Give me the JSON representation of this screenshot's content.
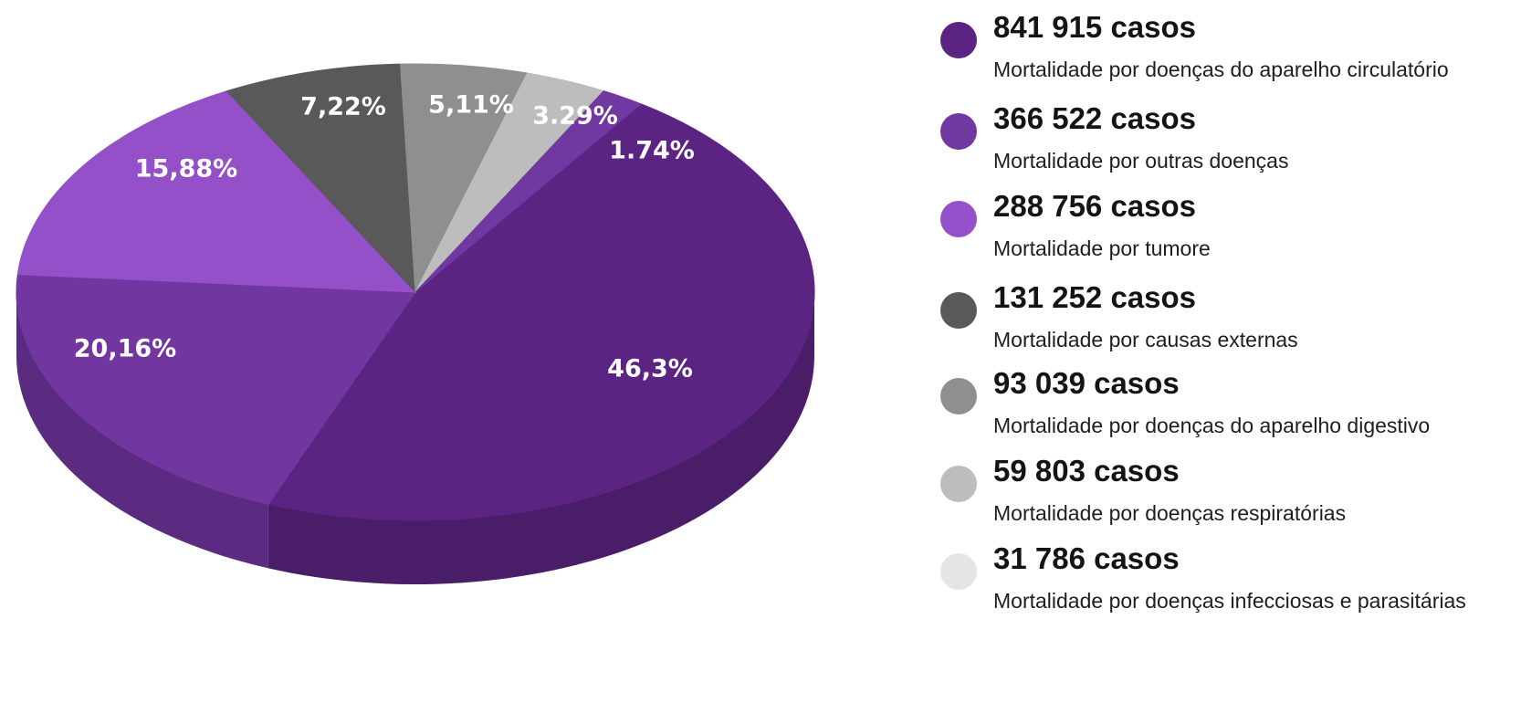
{
  "chart_data": {
    "type": "pie",
    "title": "",
    "slices": [
      {
        "label": "46,3%",
        "value": 46.3,
        "color": "#5b2482"
      },
      {
        "label": "20,16%",
        "value": 20.16,
        "color": "#7136a0"
      },
      {
        "label": "15,88%",
        "value": 15.88,
        "color": "#9450c8"
      },
      {
        "label": "7,22%",
        "value": 7.22,
        "color": "#595959"
      },
      {
        "label": "5,11%",
        "value": 5.11,
        "color": "#8f8f8f"
      },
      {
        "label": "3.29%",
        "value": 3.29,
        "color": "#bdbdbd"
      },
      {
        "label": "1.74%",
        "value": 1.74,
        "color": "#7138a2"
      }
    ],
    "legend": {
      "placement": "right",
      "items": [
        {
          "cases": "841 915 casos",
          "description": "Mortalidade por doenças do aparelho circulatório",
          "color": "#5b2482"
        },
        {
          "cases": "366 522 casos",
          "description": "Mortalidade por outras doenças",
          "color": "#7138a2"
        },
        {
          "cases": "288 756 casos",
          "description": "Mortalidade por tumore",
          "color": "#9450c8"
        },
        {
          "cases": "131 252 casos",
          "description": "Mortalidade por causas externas",
          "color": "#595959"
        },
        {
          "cases": "93 039 casos",
          "description": "Mortalidade por doenças do aparelho digestivo",
          "color": "#8f8f8f"
        },
        {
          "cases": "59 803 casos",
          "description": "Mortalidade por doenças respiratórias",
          "color": "#bdbdbd"
        },
        {
          "cases": "31 786 casos",
          "description": "Mortalidade por doenças infecciosas e parasitárias",
          "color": "#e3e6e4"
        }
      ]
    }
  }
}
